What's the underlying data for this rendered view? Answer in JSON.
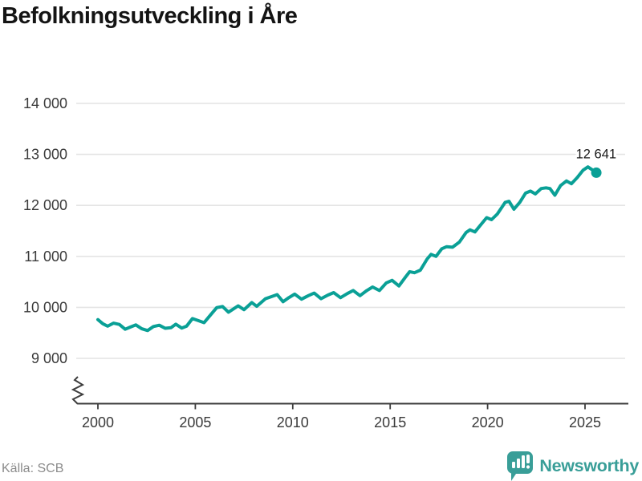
{
  "chart_data": {
    "type": "line",
    "title": "Befolkningsutveckling i Åre",
    "xlabel": "",
    "ylabel": "",
    "xlim": [
      2000,
      2025.7
    ],
    "ylim": [
      9000,
      14000
    ],
    "axis_break": true,
    "grid": true,
    "x_ticks": [
      {
        "value": 2000,
        "label": "2000"
      },
      {
        "value": 2005,
        "label": "2005"
      },
      {
        "value": 2010,
        "label": "2010"
      },
      {
        "value": 2015,
        "label": "2015"
      },
      {
        "value": 2020,
        "label": "2020"
      },
      {
        "value": 2025,
        "label": "2025"
      }
    ],
    "y_ticks": [
      {
        "value": 9000,
        "label": "9 000"
      },
      {
        "value": 10000,
        "label": "10 000"
      },
      {
        "value": 11000,
        "label": "11 000"
      },
      {
        "value": 12000,
        "label": "12 000"
      },
      {
        "value": 13000,
        "label": "13 000"
      },
      {
        "value": 14000,
        "label": "14 000"
      }
    ],
    "series": [
      {
        "name": "Befolkning",
        "color": "#0aa096",
        "last_value": 12641,
        "last_point_label": "12 641",
        "points": [
          [
            2000.0,
            9760
          ],
          [
            2000.25,
            9680
          ],
          [
            2000.5,
            9630
          ],
          [
            2000.8,
            9690
          ],
          [
            2001.1,
            9665
          ],
          [
            2001.4,
            9570
          ],
          [
            2001.7,
            9620
          ],
          [
            2001.95,
            9655
          ],
          [
            2002.25,
            9580
          ],
          [
            2002.55,
            9545
          ],
          [
            2002.85,
            9625
          ],
          [
            2003.15,
            9650
          ],
          [
            2003.45,
            9590
          ],
          [
            2003.75,
            9600
          ],
          [
            2004.0,
            9670
          ],
          [
            2004.3,
            9595
          ],
          [
            2004.55,
            9630
          ],
          [
            2004.85,
            9780
          ],
          [
            2005.15,
            9740
          ],
          [
            2005.45,
            9700
          ],
          [
            2005.8,
            9860
          ],
          [
            2006.1,
            9995
          ],
          [
            2006.4,
            10015
          ],
          [
            2006.7,
            9905
          ],
          [
            2007.2,
            10030
          ],
          [
            2007.5,
            9955
          ],
          [
            2007.9,
            10095
          ],
          [
            2008.15,
            10020
          ],
          [
            2008.6,
            10170
          ],
          [
            2009.2,
            10250
          ],
          [
            2009.5,
            10110
          ],
          [
            2009.8,
            10190
          ],
          [
            2010.1,
            10260
          ],
          [
            2010.45,
            10160
          ],
          [
            2010.8,
            10230
          ],
          [
            2011.1,
            10280
          ],
          [
            2011.45,
            10170
          ],
          [
            2011.8,
            10240
          ],
          [
            2012.1,
            10290
          ],
          [
            2012.45,
            10190
          ],
          [
            2012.8,
            10270
          ],
          [
            2013.1,
            10330
          ],
          [
            2013.45,
            10230
          ],
          [
            2013.8,
            10330
          ],
          [
            2014.1,
            10400
          ],
          [
            2014.45,
            10330
          ],
          [
            2014.8,
            10480
          ],
          [
            2015.1,
            10530
          ],
          [
            2015.45,
            10420
          ],
          [
            2015.8,
            10600
          ],
          [
            2016.0,
            10700
          ],
          [
            2016.25,
            10680
          ],
          [
            2016.55,
            10730
          ],
          [
            2016.9,
            10950
          ],
          [
            2017.1,
            11040
          ],
          [
            2017.35,
            11000
          ],
          [
            2017.65,
            11150
          ],
          [
            2017.9,
            11190
          ],
          [
            2018.2,
            11180
          ],
          [
            2018.55,
            11280
          ],
          [
            2018.9,
            11470
          ],
          [
            2019.1,
            11520
          ],
          [
            2019.35,
            11480
          ],
          [
            2019.65,
            11620
          ],
          [
            2019.95,
            11760
          ],
          [
            2020.2,
            11720
          ],
          [
            2020.5,
            11830
          ],
          [
            2020.9,
            12060
          ],
          [
            2021.1,
            12080
          ],
          [
            2021.35,
            11925
          ],
          [
            2021.65,
            12060
          ],
          [
            2021.95,
            12240
          ],
          [
            2022.2,
            12280
          ],
          [
            2022.45,
            12225
          ],
          [
            2022.75,
            12330
          ],
          [
            2023.0,
            12345
          ],
          [
            2023.2,
            12330
          ],
          [
            2023.45,
            12200
          ],
          [
            2023.75,
            12390
          ],
          [
            2024.05,
            12480
          ],
          [
            2024.3,
            12425
          ],
          [
            2024.6,
            12545
          ],
          [
            2024.9,
            12690
          ],
          [
            2025.15,
            12755
          ],
          [
            2025.4,
            12690
          ],
          [
            2025.58,
            12641
          ]
        ]
      }
    ]
  },
  "colors": {
    "line": "#0aa096",
    "brand_teal": "#399e98",
    "grid": "#e4e4e4",
    "axis": "#3d3d3d",
    "tick_text": "#3a3a3a",
    "title_text": "#141414",
    "source_text": "#8b8b8b"
  },
  "footer": {
    "source": "Källa: SCB",
    "logo_text": "Newsworthy"
  }
}
